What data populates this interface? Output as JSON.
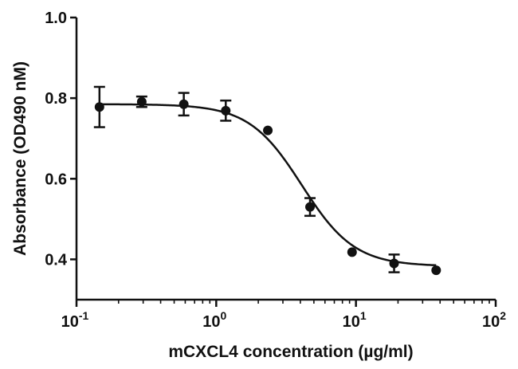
{
  "chart_data": {
    "type": "scatter",
    "title": "",
    "xlabel": "mCXCL4 concentration (µg/ml)",
    "ylabel": "Absorbance (OD490 nM)",
    "x_scale": "log",
    "xlim": [
      0.1,
      100
    ],
    "ylim": [
      0.3,
      1.0
    ],
    "x_ticks": [
      {
        "value": 0.1,
        "base": "10",
        "exp": "-1"
      },
      {
        "value": 1,
        "base": "10",
        "exp": "0"
      },
      {
        "value": 10,
        "base": "10",
        "exp": "1"
      },
      {
        "value": 100,
        "base": "10",
        "exp": "2"
      }
    ],
    "y_ticks": [
      {
        "value": 0.4,
        "label": "0.4"
      },
      {
        "value": 0.6,
        "label": "0.6"
      },
      {
        "value": 0.8,
        "label": "0.8"
      },
      {
        "value": 1.0,
        "label": "1.0"
      }
    ],
    "grid": false,
    "legend": "none",
    "marker_color": "#111111",
    "series": [
      {
        "points": [
          {
            "x": 0.146,
            "y": 0.778,
            "err": 0.05
          },
          {
            "x": 0.293,
            "y": 0.791,
            "err": 0.013
          },
          {
            "x": 0.586,
            "y": 0.785,
            "err": 0.028
          },
          {
            "x": 1.17,
            "y": 0.769,
            "err": 0.025
          },
          {
            "x": 2.34,
            "y": 0.72,
            "err": 0
          },
          {
            "x": 4.69,
            "y": 0.53,
            "err": 0.022
          },
          {
            "x": 9.38,
            "y": 0.418,
            "err": 0
          },
          {
            "x": 18.75,
            "y": 0.39,
            "err": 0.022
          },
          {
            "x": 37.5,
            "y": 0.373,
            "err": 0
          }
        ],
        "fit": {
          "model": "sigmoidal dose-response",
          "top": 0.785,
          "bottom": 0.383,
          "ec50": 4.1,
          "hill": 2.3
        }
      }
    ]
  }
}
